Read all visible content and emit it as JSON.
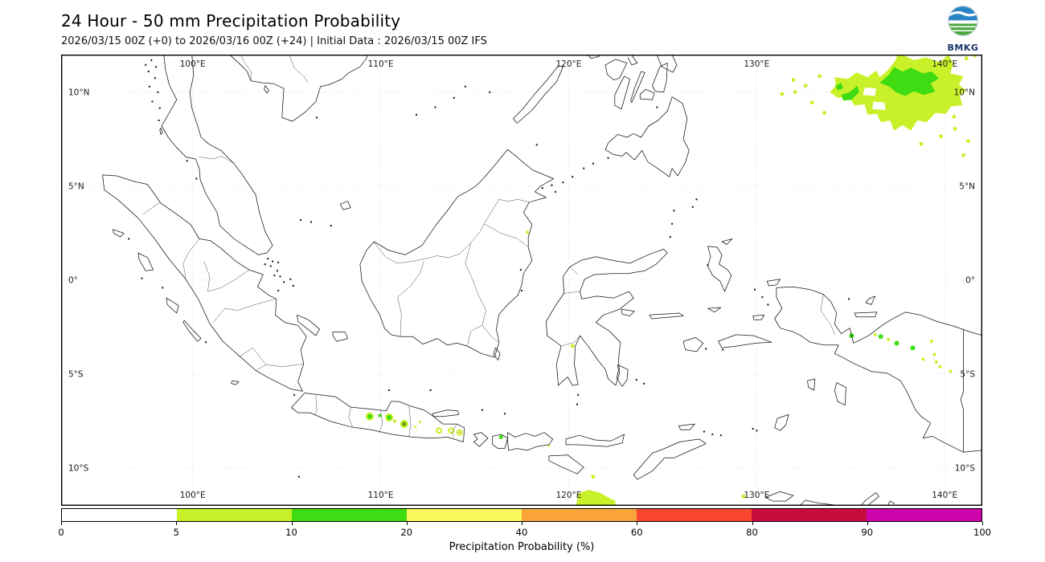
{
  "header": {
    "title": "24 Hour - 50 mm Precipitation Probability",
    "subtitle": "2026/03/15 00Z (+0) to 2026/03/16 00Z (+24) | Initial Data : 2026/03/15 00Z IFS",
    "logo_text": "BMKG"
  },
  "map": {
    "lon_tick_labels": [
      "100°E",
      "110°E",
      "120°E",
      "130°E",
      "140°E"
    ],
    "lon_tick_values": [
      100,
      110,
      120,
      130,
      140
    ],
    "lat_tick_labels": [
      "10°N",
      "5°N",
      "0°",
      "5°S",
      "10°S"
    ],
    "lat_tick_values": [
      10,
      5,
      0,
      -5,
      -10
    ],
    "extent": {
      "lon_min": 93,
      "lon_max": 142,
      "lat_min": -12,
      "lat_max": 12
    }
  },
  "colorbar": {
    "tick_labels": [
      "0",
      "5",
      "10",
      "20",
      "40",
      "60",
      "80",
      "90",
      "100"
    ],
    "colors": [
      "#ffffff",
      "#c9f129",
      "#3fdc13",
      "#f8f959",
      "#fba43c",
      "#f8472e",
      "#c60d3d",
      "#ce04ad"
    ],
    "label": "Precipitation Probability (%)"
  },
  "chart_data": {
    "type": "map",
    "title": "24 Hour - 50 mm Precipitation Probability",
    "period": "2026/03/15 00Z (+0) to 2026/03/16 00Z (+24)",
    "initial_data": "2026/03/15 00Z IFS",
    "probability_bins_percent": [
      0,
      5,
      10,
      20,
      40,
      60,
      80,
      90,
      100
    ],
    "bin_colors": [
      "#ffffff",
      "#c9f129",
      "#3fdc13",
      "#f8f959",
      "#fba43c",
      "#f8472e",
      "#c60d3d",
      "#ce04ad"
    ],
    "areas": [
      {
        "name": "pacific-blob-5-10",
        "type": "poly",
        "ci": 1,
        "pts": [
          [
            133.9,
            10.0
          ],
          [
            134.2,
            10.35
          ],
          [
            134.15,
            10.8
          ],
          [
            134.85,
            10.7
          ],
          [
            135.3,
            11.05
          ],
          [
            135.9,
            10.8
          ],
          [
            136.35,
            11.15
          ],
          [
            136.55,
            10.8
          ],
          [
            137.0,
            11.2
          ],
          [
            137.35,
            11.65
          ],
          [
            137.55,
            12.1
          ],
          [
            138.35,
            11.7
          ],
          [
            139.0,
            11.85
          ],
          [
            139.75,
            11.6
          ],
          [
            140.2,
            12.0
          ],
          [
            140.45,
            11.5
          ],
          [
            140.3,
            11.0
          ],
          [
            141.0,
            10.85
          ],
          [
            140.75,
            10.4
          ],
          [
            141.15,
            10.1
          ],
          [
            140.8,
            9.8
          ],
          [
            140.95,
            9.3
          ],
          [
            140.35,
            9.25
          ],
          [
            140.05,
            8.85
          ],
          [
            139.5,
            8.9
          ],
          [
            139.05,
            8.4
          ],
          [
            138.55,
            8.5
          ],
          [
            138.2,
            7.95
          ],
          [
            137.75,
            8.25
          ],
          [
            137.3,
            7.95
          ],
          [
            137.1,
            8.5
          ],
          [
            136.6,
            8.4
          ],
          [
            136.4,
            8.85
          ],
          [
            135.9,
            8.8
          ],
          [
            135.75,
            9.35
          ],
          [
            135.2,
            9.3
          ],
          [
            134.9,
            9.75
          ],
          [
            134.3,
            9.7
          ]
        ]
      },
      {
        "name": "pacific-blob-hole-1",
        "type": "poly",
        "ci": 0,
        "pts": [
          [
            135.65,
            9.85
          ],
          [
            136.3,
            9.8
          ],
          [
            136.35,
            10.2
          ],
          [
            135.75,
            10.25
          ]
        ]
      },
      {
        "name": "pacific-blob-hole-2",
        "type": "poly",
        "ci": 0,
        "pts": [
          [
            136.15,
            9.1
          ],
          [
            136.85,
            9.05
          ],
          [
            136.8,
            9.45
          ],
          [
            136.2,
            9.5
          ]
        ]
      },
      {
        "name": "pacific-blob-core-10-20",
        "type": "poly",
        "ci": 2,
        "pts": [
          [
            136.55,
            10.5
          ],
          [
            137.05,
            10.95
          ],
          [
            137.3,
            11.35
          ],
          [
            137.75,
            11.1
          ],
          [
            138.2,
            11.3
          ],
          [
            138.85,
            11.0
          ],
          [
            139.3,
            11.1
          ],
          [
            139.7,
            10.75
          ],
          [
            139.25,
            10.45
          ],
          [
            139.5,
            10.05
          ],
          [
            138.9,
            9.85
          ],
          [
            138.35,
            10.05
          ],
          [
            137.9,
            9.8
          ],
          [
            137.4,
            10.0
          ],
          [
            137.05,
            10.3
          ]
        ]
      },
      {
        "name": "pacific-core-west",
        "type": "poly",
        "ci": 2,
        "pts": [
          [
            134.5,
            9.85
          ],
          [
            134.95,
            10.0
          ],
          [
            135.35,
            10.35
          ],
          [
            135.45,
            10.0
          ],
          [
            135.05,
            9.6
          ],
          [
            134.6,
            9.55
          ]
        ]
      },
      {
        "name": "pacific-core-nub",
        "type": "poly",
        "ci": 2,
        "pts": [
          [
            134.2,
            10.35
          ],
          [
            134.5,
            10.5
          ],
          [
            134.6,
            10.2
          ],
          [
            134.3,
            10.1
          ]
        ]
      },
      {
        "name": "pacific-scatter",
        "type": "dots",
        "ci": 1,
        "r": 2.4,
        "pts": [
          [
            132.6,
            10.35
          ],
          [
            132.05,
            10.0
          ],
          [
            131.35,
            9.9
          ],
          [
            132.95,
            9.45
          ],
          [
            133.35,
            10.85
          ],
          [
            131.95,
            10.65
          ],
          [
            141.15,
            11.8
          ],
          [
            141.6,
            11.95
          ],
          [
            140.55,
            8.05
          ],
          [
            141.25,
            7.4
          ],
          [
            141.0,
            6.65
          ],
          [
            139.8,
            7.65
          ],
          [
            138.75,
            7.25
          ],
          [
            140.5,
            8.7
          ],
          [
            133.6,
            8.9
          ]
        ]
      },
      {
        "name": "papua-interior-green",
        "type": "dots",
        "ci": 2,
        "r": 3,
        "pts": [
          [
            135.05,
            -2.95
          ],
          [
            136.6,
            -3.0
          ],
          [
            137.45,
            -3.35
          ],
          [
            138.3,
            -3.6
          ]
        ]
      },
      {
        "name": "papua-interior-light",
        "type": "dots",
        "ci": 1,
        "r": 2,
        "pts": [
          [
            136.3,
            -2.9
          ],
          [
            137.0,
            -3.15
          ],
          [
            139.3,
            -3.25
          ],
          [
            139.55,
            -4.35
          ],
          [
            139.75,
            -4.6
          ],
          [
            140.3,
            -4.85
          ],
          [
            138.85,
            -4.2
          ],
          [
            139.45,
            -3.95
          ]
        ]
      },
      {
        "name": "java-peak",
        "type": "peak",
        "ci": 2,
        "lon": 109.42,
        "lat": -7.25
      },
      {
        "name": "java-dot",
        "type": "dot",
        "ci": 2,
        "r": 2,
        "lon": 109.95,
        "lat": -7.2
      },
      {
        "name": "java-peak",
        "type": "peak",
        "ci": 2,
        "lon": 110.45,
        "lat": -7.3
      },
      {
        "name": "java-dot",
        "type": "dot",
        "ci": 1,
        "r": 2,
        "lon": 110.75,
        "lat": -7.5
      },
      {
        "name": "java-peak-red-core",
        "type": "peak",
        "ci": 2,
        "core_ci": 5,
        "lon": 111.25,
        "lat": -7.65
      },
      {
        "name": "java-dot",
        "type": "dot",
        "ci": 1,
        "r": 1.5,
        "lon": 111.85,
        "lat": -7.8
      },
      {
        "name": "java-dot",
        "type": "dot",
        "ci": 1,
        "r": 1.5,
        "lon": 112.1,
        "lat": -7.55
      },
      {
        "name": "java-annulus",
        "type": "annulus",
        "ci": 1,
        "r": 4,
        "lon": 113.1,
        "lat": -8.0
      },
      {
        "name": "java-annulus",
        "type": "annulus",
        "ci": 1,
        "r": 4,
        "lon": 113.75,
        "lat": -8.0
      },
      {
        "name": "java-annulus-orange-core",
        "type": "annulus",
        "ci": 1,
        "r": 4,
        "core_ci": 4,
        "lon": 114.2,
        "lat": -8.1
      },
      {
        "name": "lombok-dot",
        "type": "dot",
        "ci": 2,
        "r": 2.5,
        "lon": 116.4,
        "lat": -8.35
      },
      {
        "name": "sumbawa-dot",
        "type": "dot",
        "ci": 1,
        "r": 1.5,
        "lon": 118.95,
        "lat": -8.8
      },
      {
        "name": "savu-sea-south-blob",
        "type": "poly",
        "ci": 1,
        "pts": [
          [
            120.5,
            -11.35
          ],
          [
            121.05,
            -11.15
          ],
          [
            121.65,
            -11.3
          ],
          [
            122.1,
            -11.55
          ],
          [
            122.5,
            -11.75
          ],
          [
            122.45,
            -12.1
          ],
          [
            120.35,
            -12.1
          ],
          [
            120.45,
            -11.7
          ]
        ]
      },
      {
        "name": "timor-dash",
        "type": "dot",
        "ci": 1,
        "r": 2.5,
        "lon": 121.3,
        "lat": -10.45
      },
      {
        "name": "se-corner-dash",
        "type": "dot",
        "ci": 1,
        "r": 2.5,
        "lon": 129.3,
        "lat": -11.5
      },
      {
        "name": "sulawesi-dot",
        "type": "dot",
        "ci": 1,
        "r": 2.5,
        "lon": 120.2,
        "lat": -3.5
      },
      {
        "name": "borneo-coast-dot",
        "type": "dot",
        "ci": 1,
        "r": 2,
        "lon": 117.8,
        "lat": 2.55
      }
    ]
  }
}
